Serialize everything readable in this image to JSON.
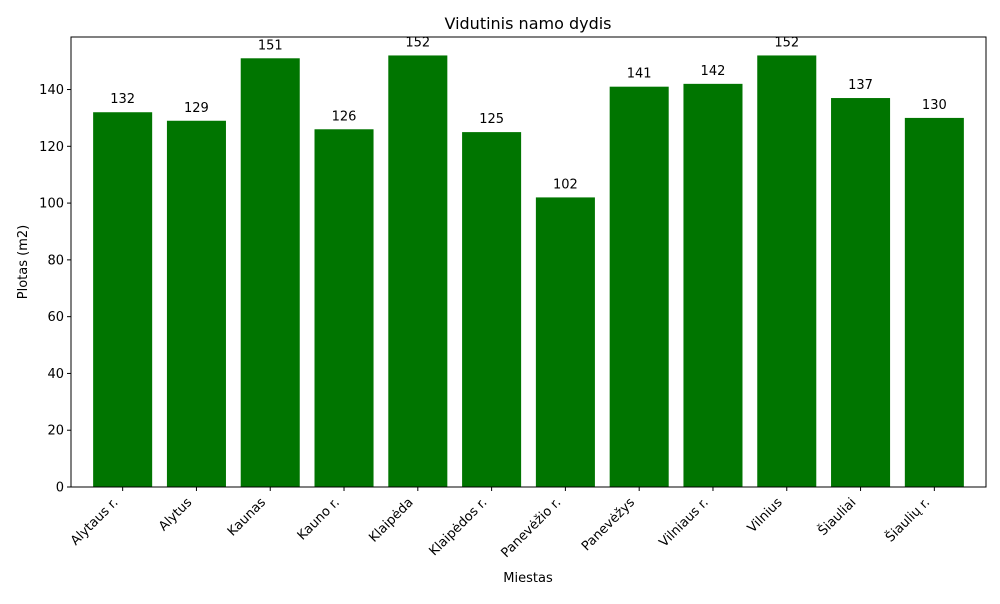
{
  "chart_data": {
    "type": "bar",
    "title": "Vidutinis namo dydis",
    "xlabel": "Miestas",
    "ylabel": "Plotas (m2)",
    "categories": [
      "Alytaus r.",
      "Alytus",
      "Kaunas",
      "Kauno r.",
      "Klaipėda",
      "Klaipėdos r.",
      "Panevėžio r.",
      "Panevėžys",
      "Vilniaus r.",
      "Vilnius",
      "Šiauliai",
      "Šiaulių r."
    ],
    "values": [
      132,
      129,
      151,
      126,
      152,
      125,
      102,
      141,
      142,
      152,
      137,
      130
    ],
    "data_labels": [
      "132",
      "129",
      "151",
      "126",
      "152",
      "125",
      "102",
      "141",
      "142",
      "152",
      "137",
      "130"
    ],
    "ylim": [
      0,
      158.5
    ],
    "yticks": [
      0,
      20,
      40,
      60,
      80,
      100,
      120,
      140
    ],
    "bar_color": "#007500",
    "grid": false,
    "legend": false
  }
}
